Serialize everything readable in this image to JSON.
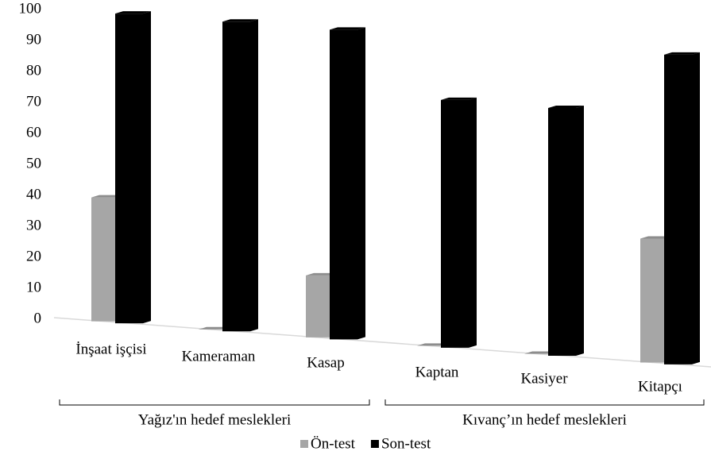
{
  "chart_data": {
    "type": "bar3d",
    "categories": [
      "İnşaat işçisi",
      "Kameraman",
      "Kasap",
      "Kaptan",
      "Kasiyer",
      "Kitapçı"
    ],
    "series": [
      {
        "name": "Ön-test",
        "color": "#a6a6a6",
        "values": [
          40,
          0,
          20,
          0,
          0,
          40
        ]
      },
      {
        "name": "Son-test",
        "color": "#000000",
        "values": [
          100,
          100,
          100,
          80,
          80,
          100
        ]
      }
    ],
    "ylim": [
      0,
      100
    ],
    "yticks": [
      0,
      10,
      20,
      30,
      40,
      50,
      60,
      70,
      80,
      90,
      100
    ],
    "groups": [
      {
        "label": "Yağız'ın hedef meslekleri",
        "from": 0,
        "to": 2
      },
      {
        "label": "Kıvanç’ın hedef meslekleri",
        "from": 3,
        "to": 5
      }
    ],
    "legend": "bottom"
  }
}
